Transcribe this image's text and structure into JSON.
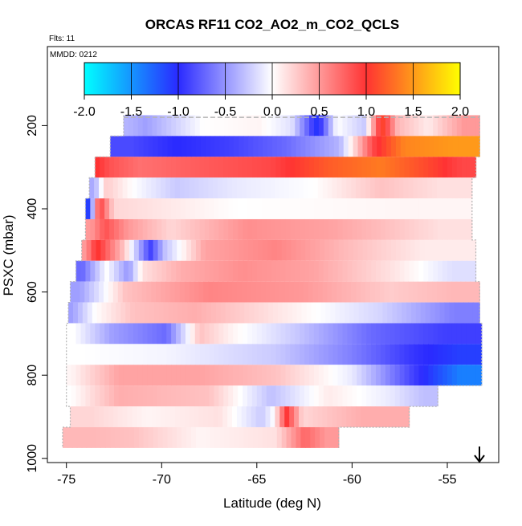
{
  "chart_data": {
    "type": "heatmap",
    "title": "ORCAS RF11 CO2_AO2_m_CO2_QCLS",
    "flights_note": "Flts: 11",
    "date_note": "MMDD: 0212",
    "xlabel": "Latitude (deg N)",
    "ylabel": "PSXC (mbar)",
    "xlim": [
      -76,
      -52.3
    ],
    "ylim": [
      1010,
      10
    ],
    "x_ticks": [
      -75,
      -70,
      -65,
      -60,
      -55
    ],
    "x_tick_labels": [
      "-75",
      "-70",
      "-65",
      "-60",
      "-55"
    ],
    "y_ticks": [
      200,
      400,
      600,
      800,
      1000
    ],
    "y_tick_labels": [
      "200",
      "400",
      "600",
      "800",
      "1000"
    ],
    "colorbar": {
      "range": [
        -2.0,
        2.0
      ],
      "ticks": [
        -2.0,
        -1.5,
        -1.0,
        -0.5,
        0.0,
        0.5,
        1.0,
        1.5,
        2.0
      ],
      "tick_labels": [
        "-2.0",
        "-1.5",
        "-1.0",
        "-0.5",
        "0.0",
        "0.5",
        "1.0",
        "1.5",
        "2.0"
      ],
      "colors": [
        "#00ffff",
        "#2a2aff",
        "#ffffff",
        "#ff3333",
        "#ffff00"
      ]
    },
    "cell_width_deg": 0.25,
    "bands": [
      {
        "p_top": 175,
        "p_bot": 225,
        "lat_min": -72.0,
        "lat_max": -53.3,
        "segments": [
          [
            -72.0,
            -71.5,
            -0.35
          ],
          [
            -71.5,
            -70.2,
            -0.45
          ],
          [
            -70.2,
            -65.5,
            0.0
          ],
          [
            -65.5,
            -64.3,
            0.05
          ],
          [
            -64.3,
            -62.0,
            -0.15
          ],
          [
            -62.0,
            -61.6,
            -1.1
          ],
          [
            -61.6,
            -60.0,
            0.0
          ],
          [
            -60.0,
            -58.7,
            -0.25
          ],
          [
            -58.7,
            -58.2,
            1.15
          ],
          [
            -58.2,
            -57.0,
            0.35
          ],
          [
            -57.0,
            -55.0,
            0.1
          ],
          [
            -55.0,
            -53.3,
            0.5
          ]
        ]
      },
      {
        "p_top": 225,
        "p_bot": 275,
        "lat_min": -72.7,
        "lat_max": -53.3,
        "segments": [
          [
            -72.7,
            -70.5,
            -0.85
          ],
          [
            -70.5,
            -68.0,
            -1.0
          ],
          [
            -68.0,
            -65.0,
            -0.9
          ],
          [
            -65.0,
            -62.0,
            -0.7
          ],
          [
            -62.0,
            -59.3,
            -0.35
          ],
          [
            -59.3,
            -58.5,
            0.9
          ],
          [
            -58.5,
            -56.0,
            1.4
          ],
          [
            -56.0,
            -53.3,
            1.5
          ]
        ]
      },
      {
        "p_top": 275,
        "p_bot": 325,
        "lat_min": -73.5,
        "lat_max": -53.5,
        "segments": [
          [
            -73.5,
            -73.2,
            1.0
          ],
          [
            -73.2,
            -72.3,
            0.85
          ],
          [
            -72.3,
            -70.0,
            0.7
          ],
          [
            -70.0,
            -66.0,
            0.8
          ],
          [
            -66.0,
            -62.5,
            0.9
          ],
          [
            -62.5,
            -60.0,
            1.2
          ],
          [
            -60.0,
            -57.0,
            1.35
          ],
          [
            -57.0,
            -55.0,
            1.1
          ],
          [
            -55.0,
            -53.5,
            0.9
          ]
        ]
      },
      {
        "p_top": 325,
        "p_bot": 375,
        "lat_min": -73.8,
        "lat_max": -53.7,
        "segments": [
          [
            -73.8,
            -73.3,
            -0.4
          ],
          [
            -73.3,
            -72.5,
            0.25
          ],
          [
            -72.5,
            -70.5,
            0.0
          ],
          [
            -70.5,
            -68.0,
            -0.25
          ],
          [
            -68.0,
            -64.0,
            -0.1
          ],
          [
            -64.0,
            -60.0,
            0.0
          ],
          [
            -60.0,
            -57.0,
            0.3
          ],
          [
            -57.0,
            -53.7,
            0.15
          ]
        ]
      },
      {
        "p_top": 375,
        "p_bot": 425,
        "lat_min": -74.0,
        "lat_max": -53.7,
        "segments": [
          [
            -74.0,
            -73.6,
            -1.1
          ],
          [
            -73.6,
            -73.0,
            1.0
          ],
          [
            -73.0,
            -72.0,
            0.2
          ],
          [
            -72.0,
            -60.0,
            0.0
          ],
          [
            -60.0,
            -53.7,
            0.05
          ]
        ]
      },
      {
        "p_top": 425,
        "p_bot": 475,
        "lat_min": -74.0,
        "lat_max": -53.7,
        "segments": [
          [
            -74.0,
            -73.4,
            0.5
          ],
          [
            -73.4,
            -72.5,
            0.85
          ],
          [
            -72.5,
            -71.0,
            0.5
          ],
          [
            -71.0,
            -68.0,
            0.2
          ],
          [
            -68.0,
            -63.0,
            0.55
          ],
          [
            -63.0,
            -59.0,
            0.45
          ],
          [
            -59.0,
            -57.0,
            0.3
          ],
          [
            -57.0,
            -53.7,
            0.15
          ]
        ]
      },
      {
        "p_top": 475,
        "p_bot": 525,
        "lat_min": -74.2,
        "lat_max": -53.5,
        "segments": [
          [
            -74.2,
            -73.8,
            0.5
          ],
          [
            -73.8,
            -73.0,
            1.05
          ],
          [
            -73.0,
            -71.0,
            0.3
          ],
          [
            -71.0,
            -70.2,
            -0.9
          ],
          [
            -70.2,
            -69.5,
            -0.3
          ],
          [
            -69.5,
            -66.0,
            0.45
          ],
          [
            -66.0,
            -62.0,
            0.6
          ],
          [
            -62.0,
            -59.0,
            0.35
          ],
          [
            -59.0,
            -53.5,
            0.1
          ]
        ]
      },
      {
        "p_top": 525,
        "p_bot": 575,
        "lat_min": -74.5,
        "lat_max": -53.5,
        "segments": [
          [
            -74.5,
            -73.8,
            -0.7
          ],
          [
            -73.8,
            -72.0,
            0.0
          ],
          [
            -72.0,
            -71.5,
            -0.5
          ],
          [
            -71.5,
            -70.5,
            0.15
          ],
          [
            -70.5,
            -67.5,
            0.4
          ],
          [
            -67.5,
            -64.0,
            0.55
          ],
          [
            -64.0,
            -60.0,
            0.45
          ],
          [
            -60.0,
            -56.0,
            0.15
          ],
          [
            -56.0,
            -53.5,
            -0.15
          ]
        ]
      },
      {
        "p_top": 575,
        "p_bot": 625,
        "lat_min": -74.8,
        "lat_max": -53.3,
        "segments": [
          [
            -74.8,
            -73.8,
            -0.45
          ],
          [
            -73.8,
            -70.0,
            0.3
          ],
          [
            -70.0,
            -65.0,
            0.6
          ],
          [
            -65.0,
            -60.0,
            0.5
          ],
          [
            -60.0,
            -56.0,
            0.25
          ],
          [
            -56.0,
            -53.3,
            0.35
          ]
        ]
      },
      {
        "p_top": 625,
        "p_bot": 675,
        "lat_min": -74.9,
        "lat_max": -53.3,
        "segments": [
          [
            -74.9,
            -74.5,
            -0.45
          ],
          [
            -74.5,
            -72.5,
            0.0
          ],
          [
            -72.5,
            -70.5,
            0.3
          ],
          [
            -70.5,
            -66.0,
            0.4
          ],
          [
            -66.0,
            -61.0,
            0.1
          ],
          [
            -61.0,
            -56.0,
            -0.2
          ],
          [
            -56.0,
            -53.3,
            -0.6
          ]
        ]
      },
      {
        "p_top": 675,
        "p_bot": 725,
        "lat_min": -75.0,
        "lat_max": -53.2,
        "segments": [
          [
            -75.0,
            -74.2,
            0.0
          ],
          [
            -74.2,
            -71.0,
            -0.45
          ],
          [
            -71.0,
            -68.5,
            -0.7
          ],
          [
            -68.5,
            -67.5,
            0.3
          ],
          [
            -67.5,
            -65.0,
            0.05
          ],
          [
            -65.0,
            -61.0,
            -0.25
          ],
          [
            -61.0,
            -57.0,
            -0.7
          ],
          [
            -57.0,
            -53.2,
            -0.9
          ]
        ]
      },
      {
        "p_top": 725,
        "p_bot": 775,
        "lat_min": -75.0,
        "lat_max": -53.2,
        "segments": [
          [
            -75.0,
            -73.5,
            0.0
          ],
          [
            -73.5,
            -66.0,
            -0.05
          ],
          [
            -66.0,
            -62.0,
            -0.25
          ],
          [
            -62.0,
            -58.0,
            -0.6
          ],
          [
            -58.0,
            -55.5,
            -0.95
          ],
          [
            -55.5,
            -53.2,
            -1.1
          ]
        ]
      },
      {
        "p_top": 775,
        "p_bot": 825,
        "lat_min": -75.0,
        "lat_max": -53.2,
        "segments": [
          [
            -75.0,
            -74.5,
            0.05
          ],
          [
            -74.5,
            -70.0,
            0.45
          ],
          [
            -70.0,
            -66.0,
            0.45
          ],
          [
            -66.0,
            -62.0,
            0.3
          ],
          [
            -62.0,
            -58.0,
            -0.1
          ],
          [
            -58.0,
            -55.5,
            -0.9
          ],
          [
            -55.5,
            -53.2,
            -1.4
          ]
        ]
      },
      {
        "p_top": 825,
        "p_bot": 875,
        "lat_min": -75.0,
        "lat_max": -55.5,
        "segments": [
          [
            -75.0,
            -74.5,
            0.0
          ],
          [
            -74.5,
            -70.0,
            0.4
          ],
          [
            -70.0,
            -65.0,
            0.3
          ],
          [
            -65.0,
            -63.5,
            -0.3
          ],
          [
            -63.5,
            -59.0,
            0.1
          ],
          [
            -59.0,
            -57.0,
            -0.1
          ],
          [
            -57.0,
            -55.5,
            -0.3
          ]
        ]
      },
      {
        "p_top": 875,
        "p_bot": 925,
        "lat_min": -74.8,
        "lat_max": -57.0,
        "segments": [
          [
            -74.8,
            -72.5,
            0.2
          ],
          [
            -72.5,
            -69.0,
            0.05
          ],
          [
            -69.0,
            -65.0,
            0.15
          ],
          [
            -65.0,
            -64.5,
            -0.25
          ],
          [
            -64.5,
            -63.7,
            0.0
          ],
          [
            -63.7,
            -63.2,
            1.0
          ],
          [
            -63.2,
            -62.0,
            0.2
          ],
          [
            -62.0,
            -57.0,
            0.4
          ]
        ]
      },
      {
        "p_top": 925,
        "p_bot": 975,
        "lat_min": -75.2,
        "lat_max": -60.7,
        "segments": [
          [
            -75.2,
            -72.0,
            0.35
          ],
          [
            -72.0,
            -71.0,
            0.3
          ],
          [
            -71.0,
            -65.0,
            0.05
          ],
          [
            -65.0,
            -63.0,
            0.15
          ],
          [
            -63.0,
            -62.0,
            0.75
          ],
          [
            -62.0,
            -60.7,
            0.5
          ]
        ]
      }
    ]
  }
}
